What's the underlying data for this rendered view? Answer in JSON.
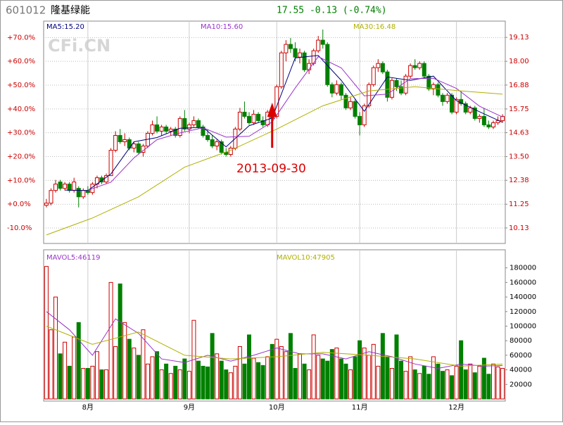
{
  "header": {
    "code": "601012",
    "name": "隆基绿能",
    "quote": "17.55 -0.13 (-0.74%)"
  },
  "watermark": "CFi.CN",
  "chart_data": [
    {
      "type": "candlestick",
      "xlim": [
        -0.6,
        99.6
      ],
      "xticks": [
        {
          "value": 9,
          "label": "8月"
        },
        {
          "value": 31,
          "label": "9月"
        },
        {
          "value": 50,
          "label": "10月"
        },
        {
          "value": 68,
          "label": "11月"
        },
        {
          "value": 89,
          "label": "12月"
        }
      ],
      "ylim": [
        -16.2,
        76.9
      ],
      "yticks": [
        {
          "value": 70,
          "label": "+70.0%"
        },
        {
          "value": 60,
          "label": "+60.0%"
        },
        {
          "value": 50,
          "label": "+50.0%"
        },
        {
          "value": 40,
          "label": "+40.0%"
        },
        {
          "value": 30,
          "label": "+30.0%"
        },
        {
          "value": 20,
          "label": "+20.0%"
        },
        {
          "value": 10,
          "label": "+10.0%"
        },
        {
          "value": 0,
          "label": "+0.0%"
        },
        {
          "value": -10,
          "label": "-10.0%"
        }
      ],
      "y2lim": [
        9.43,
        19.9
      ],
      "y2ticks": [
        19.13,
        {
          "value": 18,
          "label": "18.00"
        },
        {
          "value": 16.88,
          "label": "16.88"
        },
        {
          "value": 15.75,
          "label": "15.75"
        },
        {
          "value": 14.63,
          "label": "14.63"
        },
        {
          "value": 13.5,
          "label": "13.50"
        },
        12.38,
        11.25,
        10.13
      ],
      "grid": true,
      "up_color": "#cc0000",
      "down_color": "#008000",
      "candles": [
        [
          11.2,
          11.5,
          11.1,
          11.3
        ],
        [
          11.3,
          12.0,
          11.2,
          11.9
        ],
        [
          11.9,
          12.4,
          11.8,
          12.2
        ],
        [
          12.3,
          12.4,
          11.9,
          12.0
        ],
        [
          12.0,
          12.3,
          11.9,
          12.2
        ],
        [
          12.2,
          12.3,
          11.8,
          11.9
        ],
        [
          11.9,
          12.5,
          11.8,
          12.3
        ],
        [
          12.0,
          12.1,
          11.1,
          11.6
        ],
        [
          11.6,
          12.0,
          11.5,
          11.9
        ],
        [
          11.9,
          12.1,
          11.7,
          11.8
        ],
        [
          11.8,
          12.3,
          11.7,
          12.2
        ],
        [
          12.2,
          12.6,
          12.0,
          12.5
        ],
        [
          12.5,
          12.6,
          12.2,
          12.3
        ],
        [
          12.3,
          12.7,
          12.2,
          12.6
        ],
        [
          12.6,
          13.9,
          12.6,
          13.8
        ],
        [
          13.8,
          14.7,
          13.7,
          14.5
        ],
        [
          14.5,
          14.8,
          14.1,
          14.2
        ],
        [
          14.2,
          14.6,
          14.0,
          14.3
        ],
        [
          14.3,
          14.4,
          13.8,
          13.9
        ],
        [
          13.9,
          14.2,
          13.7,
          14.1
        ],
        [
          14.1,
          14.2,
          13.6,
          13.7
        ],
        [
          13.7,
          14.1,
          13.5,
          14.0
        ],
        [
          14.0,
          14.7,
          13.9,
          14.6
        ],
        [
          14.6,
          15.2,
          14.5,
          15.0
        ],
        [
          15.0,
          15.4,
          14.6,
          14.7
        ],
        [
          14.7,
          15.0,
          14.5,
          14.9
        ],
        [
          14.9,
          15.0,
          14.6,
          14.7
        ],
        [
          14.7,
          14.9,
          14.5,
          14.8
        ],
        [
          14.8,
          14.9,
          14.4,
          14.5
        ],
        [
          14.5,
          15.4,
          14.4,
          15.3
        ],
        [
          15.3,
          15.7,
          14.7,
          14.8
        ],
        [
          14.8,
          15.1,
          14.6,
          15.0
        ],
        [
          15.0,
          15.4,
          14.9,
          15.2
        ],
        [
          15.2,
          15.3,
          14.8,
          14.9
        ],
        [
          14.9,
          15.0,
          14.4,
          14.5
        ],
        [
          14.5,
          14.8,
          14.2,
          14.3
        ],
        [
          14.3,
          14.5,
          13.9,
          14.0
        ],
        [
          14.0,
          14.3,
          13.8,
          14.2
        ],
        [
          14.2,
          14.3,
          13.6,
          13.7
        ],
        [
          13.7,
          13.9,
          13.5,
          13.6
        ],
        [
          13.6,
          14.0,
          13.5,
          13.9
        ],
        [
          13.9,
          14.9,
          13.8,
          14.8
        ],
        [
          14.8,
          15.8,
          14.7,
          15.6
        ],
        [
          15.6,
          16.1,
          15.3,
          15.4
        ],
        [
          15.4,
          15.6,
          15.0,
          15.1
        ],
        [
          15.1,
          15.7,
          15.0,
          15.5
        ],
        [
          15.5,
          15.6,
          15.1,
          15.2
        ],
        [
          15.2,
          15.4,
          14.9,
          15.0
        ],
        [
          15.0,
          15.7,
          14.9,
          15.6
        ],
        [
          15.6,
          16.0,
          15.1,
          15.3
        ],
        [
          15.4,
          16.9,
          15.3,
          16.8
        ],
        [
          16.8,
          18.5,
          16.7,
          18.4
        ],
        [
          18.4,
          19.0,
          18.0,
          18.8
        ],
        [
          18.8,
          19.1,
          18.4,
          18.6
        ],
        [
          18.6,
          18.9,
          18.0,
          18.2
        ],
        [
          18.2,
          18.6,
          17.9,
          18.4
        ],
        [
          18.4,
          18.5,
          17.5,
          17.6
        ],
        [
          17.6,
          18.1,
          17.4,
          17.9
        ],
        [
          17.9,
          18.6,
          17.8,
          18.5
        ],
        [
          18.5,
          19.2,
          18.4,
          19.0
        ],
        [
          19.0,
          19.5,
          18.6,
          18.8
        ],
        [
          18.8,
          18.9,
          16.8,
          16.9
        ],
        [
          16.9,
          17.0,
          16.3,
          16.5
        ],
        [
          16.5,
          17.1,
          16.4,
          16.9
        ],
        [
          16.9,
          17.0,
          16.2,
          16.4
        ],
        [
          16.4,
          16.5,
          15.7,
          15.8
        ],
        [
          15.8,
          16.3,
          15.7,
          16.1
        ],
        [
          16.1,
          16.2,
          15.3,
          15.4
        ],
        [
          15.4,
          15.6,
          14.5,
          15.0
        ],
        [
          15.0,
          16.0,
          14.9,
          15.9
        ],
        [
          15.9,
          17.0,
          15.8,
          16.9
        ],
        [
          16.9,
          17.8,
          16.8,
          17.7
        ],
        [
          17.7,
          18.1,
          17.5,
          17.9
        ],
        [
          17.9,
          18.0,
          17.4,
          17.5
        ],
        [
          17.5,
          17.6,
          16.1,
          16.3
        ],
        [
          16.3,
          17.2,
          16.2,
          17.1
        ],
        [
          17.1,
          17.2,
          16.6,
          16.8
        ],
        [
          16.8,
          17.1,
          16.4,
          16.5
        ],
        [
          16.5,
          17.4,
          16.4,
          17.3
        ],
        [
          17.3,
          17.9,
          17.2,
          17.8
        ],
        [
          17.8,
          18.1,
          17.6,
          17.7
        ],
        [
          17.7,
          18.0,
          17.6,
          17.9
        ],
        [
          17.9,
          18.0,
          17.2,
          17.3
        ],
        [
          17.3,
          17.4,
          16.6,
          16.7
        ],
        [
          16.7,
          17.0,
          16.4,
          16.9
        ],
        [
          16.9,
          17.0,
          16.3,
          16.4
        ],
        [
          16.4,
          16.5,
          15.9,
          16.1
        ],
        [
          16.1,
          16.5,
          16.0,
          16.4
        ],
        [
          16.4,
          16.5,
          15.5,
          15.6
        ],
        [
          15.6,
          16.3,
          15.5,
          16.2
        ],
        [
          16.2,
          16.6,
          15.9,
          16.0
        ],
        [
          16.0,
          16.1,
          15.5,
          15.6
        ],
        [
          15.6,
          15.9,
          15.5,
          15.8
        ],
        [
          15.8,
          15.9,
          15.2,
          15.3
        ],
        [
          15.3,
          15.5,
          15.1,
          15.4
        ],
        [
          15.4,
          15.8,
          14.9,
          15.0
        ],
        [
          15.0,
          15.2,
          14.8,
          14.9
        ],
        [
          14.9,
          15.2,
          14.8,
          15.1
        ],
        [
          15.1,
          15.4,
          15.0,
          15.2
        ],
        [
          15.2,
          15.5,
          15.1,
          15.4
        ]
      ],
      "series": [
        {
          "name": "MA5:15.20",
          "color": "#000080",
          "axis": "y2",
          "x": [
            4,
            9,
            14,
            19,
            24,
            29,
            34,
            39,
            44,
            49,
            54,
            59,
            64,
            69,
            74,
            79,
            84,
            89,
            94,
            99
          ],
          "values": [
            11.92,
            11.9,
            12.68,
            14.2,
            14.4,
            14.84,
            14.88,
            13.96,
            14.96,
            15.32,
            18.16,
            18.28,
            17.1,
            15.64,
            17.26,
            17.1,
            17.3,
            16.14,
            15.62,
            15.12
          ]
        },
        {
          "name": "MA10:15.60",
          "color": "#9933cc",
          "axis": "y2",
          "x": [
            9,
            14,
            19,
            24,
            29,
            34,
            39,
            44,
            49,
            54,
            59,
            64,
            69,
            74,
            79,
            84,
            89,
            94,
            99
          ],
          "values": [
            11.91,
            12.29,
            13.44,
            14.3,
            14.62,
            14.86,
            14.42,
            14.46,
            15.14,
            16.74,
            18.22,
            17.69,
            16.37,
            16.45,
            17.18,
            17.2,
            16.72,
            15.88,
            15.37
          ]
        },
        {
          "name": "MA30:16.48",
          "color": "#b0b000",
          "axis": "y2",
          "x": [
            0,
            10,
            20,
            30,
            40,
            50,
            60,
            70,
            80,
            90,
            99
          ],
          "values": [
            9.8,
            10.6,
            11.6,
            13.0,
            13.8,
            14.8,
            15.9,
            16.6,
            16.8,
            16.6,
            16.45
          ]
        }
      ],
      "annotation": {
        "text": "2013-09-30",
        "index": 49
      }
    },
    {
      "type": "volume",
      "xlim": [
        -0.6,
        99.6
      ],
      "ylim": [
        0,
        200000
      ],
      "y2ticks": [
        180000,
        160000,
        140000,
        120000,
        100000,
        80000,
        60000,
        40000,
        20000
      ],
      "values": [
        182000,
        95000,
        140000,
        62000,
        78000,
        45000,
        85000,
        105000,
        42000,
        42000,
        45000,
        65000,
        40000,
        40000,
        160000,
        72000,
        158000,
        105000,
        82000,
        70000,
        60000,
        95000,
        48000,
        58000,
        65000,
        40000,
        48000,
        35000,
        45000,
        40000,
        55000,
        38000,
        108000,
        52000,
        45000,
        44000,
        90000,
        62000,
        52000,
        40000,
        36000,
        45000,
        72000,
        48000,
        88000,
        56000,
        50000,
        46000,
        58000,
        75000,
        82000,
        72000,
        65000,
        90000,
        42000,
        62000,
        48000,
        40000,
        88000,
        60000,
        55000,
        52000,
        68000,
        70000,
        55000,
        48000,
        40000,
        58000,
        80000,
        70000,
        60000,
        75000,
        45000,
        90000,
        58000,
        42000,
        88000,
        52000,
        38000,
        58000,
        40000,
        35000,
        45000,
        34000,
        58000,
        48000,
        38000,
        40000,
        32000,
        45000,
        80000,
        40000,
        48000,
        36000,
        45000,
        56000,
        34000,
        48000,
        44000,
        42000
      ],
      "series": [
        {
          "name": "MAVOL5:46119",
          "color": "#9933cc",
          "x": [
            0,
            5,
            10,
            15,
            20,
            25,
            30,
            35,
            40,
            45,
            50,
            55,
            60,
            65,
            70,
            75,
            80,
            85,
            90,
            95,
            99
          ],
          "values": [
            120000,
            95000,
            60000,
            110000,
            90000,
            55000,
            50000,
            60000,
            52000,
            60000,
            70000,
            62000,
            62000,
            55000,
            65000,
            58000,
            48000,
            42000,
            48000,
            45000,
            46000
          ]
        },
        {
          "name": "MAVOL10:47905",
          "color": "#b0b000",
          "x": [
            0,
            10,
            20,
            30,
            40,
            50,
            60,
            70,
            80,
            90,
            99
          ],
          "values": [
            100000,
            75000,
            92000,
            60000,
            55000,
            58000,
            64000,
            60000,
            55000,
            45000,
            48000
          ]
        }
      ]
    }
  ]
}
